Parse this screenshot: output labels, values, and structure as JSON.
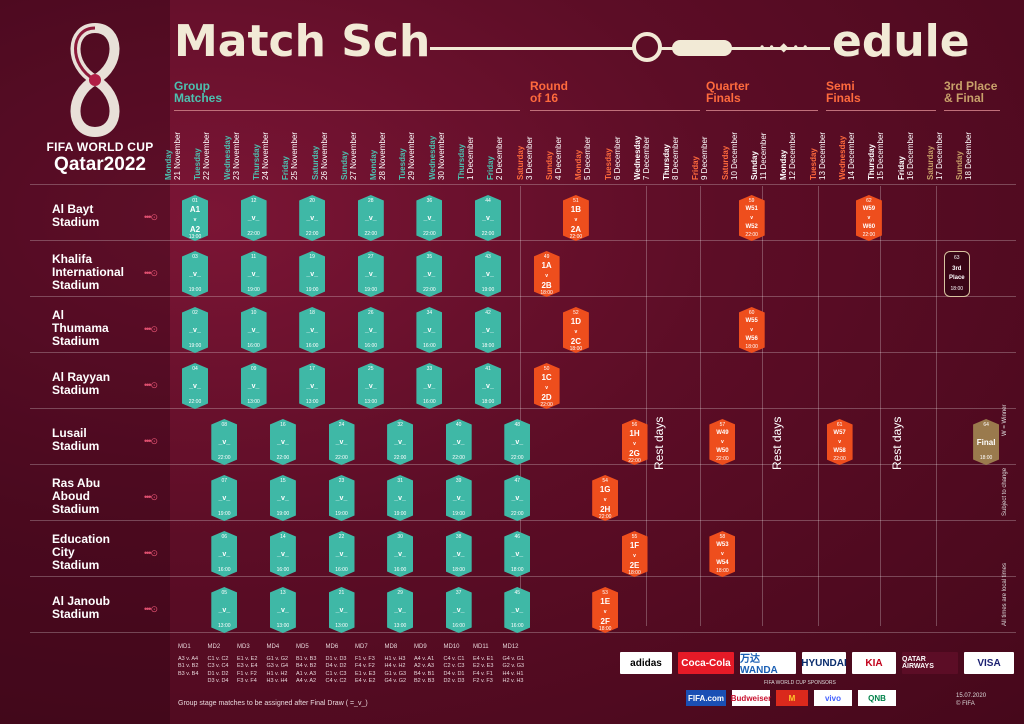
{
  "title": {
    "left": "Match Sch",
    "right": "edule"
  },
  "brand": {
    "line1": "FIFA WORLD CUP",
    "line2": "Qatar2022"
  },
  "phases": [
    {
      "label": "Group\nMatches",
      "color": "teal"
    },
    {
      "label": "Round\nof 16",
      "color": "orange"
    },
    {
      "label": "Quarter\nFinals",
      "color": "orange"
    },
    {
      "label": "Semi\nFinals",
      "color": "orange"
    },
    {
      "label": "3rd Place\n& Final",
      "color": "tan"
    }
  ],
  "dates": [
    {
      "dow": "Monday",
      "date": "21 November",
      "c": "teal"
    },
    {
      "dow": "Tuesday",
      "date": "22 November",
      "c": "teal"
    },
    {
      "dow": "Wednesday",
      "date": "23 November",
      "c": "teal"
    },
    {
      "dow": "Thursday",
      "date": "24 November",
      "c": "teal"
    },
    {
      "dow": "Friday",
      "date": "25 November",
      "c": "teal"
    },
    {
      "dow": "Saturday",
      "date": "26 November",
      "c": "teal"
    },
    {
      "dow": "Sunday",
      "date": "27 November",
      "c": "teal"
    },
    {
      "dow": "Monday",
      "date": "28 November",
      "c": "teal"
    },
    {
      "dow": "Tuesday",
      "date": "29 November",
      "c": "teal"
    },
    {
      "dow": "Wednesday",
      "date": "30 November",
      "c": "teal"
    },
    {
      "dow": "Thursday",
      "date": "1 December",
      "c": "teal"
    },
    {
      "dow": "Friday",
      "date": "2 December",
      "c": "teal"
    },
    {
      "dow": "Saturday",
      "date": "3 December",
      "c": "orange"
    },
    {
      "dow": "Sunday",
      "date": "4 December",
      "c": "orange"
    },
    {
      "dow": "Monday",
      "date": "5 December",
      "c": "orange"
    },
    {
      "dow": "Tuesday",
      "date": "6 December",
      "c": "orange"
    },
    {
      "dow": "Wednesday",
      "date": "7 December",
      "c": "white"
    },
    {
      "dow": "Thursday",
      "date": "8 December",
      "c": "white"
    },
    {
      "dow": "Friday",
      "date": "9 December",
      "c": "orange"
    },
    {
      "dow": "Saturday",
      "date": "10 December",
      "c": "orange"
    },
    {
      "dow": "Sunday",
      "date": "11 December",
      "c": "white"
    },
    {
      "dow": "Monday",
      "date": "12 December",
      "c": "white"
    },
    {
      "dow": "Tuesday",
      "date": "13 December",
      "c": "orange"
    },
    {
      "dow": "Wednesday",
      "date": "14 December",
      "c": "orange"
    },
    {
      "dow": "Thursday",
      "date": "15 December",
      "c": "white"
    },
    {
      "dow": "Friday",
      "date": "16 December",
      "c": "white"
    },
    {
      "dow": "Saturday",
      "date": "17 December",
      "c": "tan"
    },
    {
      "dow": "Sunday",
      "date": "18 December",
      "c": "tan"
    }
  ],
  "stadiums": [
    "Al Bayt\nStadium",
    "Khalifa\nInternational\nStadium",
    "Al\nThumama\nStadium",
    "Al Rayyan\nStadium",
    "Lusail\nStadium",
    "Ras Abu\nAboud\nStadium",
    "Education\nCity\nStadium",
    "Al Janoub\nStadium"
  ],
  "matches": [
    {
      "row": 0,
      "col": 0,
      "num": "01",
      "top": "A1",
      "mid": "v",
      "bot": "A2",
      "time": "13:00",
      "c": "teal"
    },
    {
      "row": 0,
      "col": 1,
      "num": "12",
      "vs": "_v_",
      "time": "22:00",
      "c": "teal"
    },
    {
      "row": 0,
      "col": 2,
      "num": "20",
      "vs": "_v_",
      "time": "22:00",
      "c": "teal"
    },
    {
      "row": 0,
      "col": 3,
      "num": "28",
      "vs": "_v_",
      "time": "22:00",
      "c": "teal"
    },
    {
      "row": 0,
      "col": 4,
      "num": "36",
      "vs": "_v_",
      "time": "22:00",
      "c": "teal"
    },
    {
      "row": 0,
      "col": 5,
      "num": "44",
      "vs": "_v_",
      "time": "22:00",
      "c": "teal"
    },
    {
      "row": 0,
      "col": 6,
      "num": "51",
      "top": "1B",
      "mid": "v",
      "bot": "2A",
      "time": "22:00",
      "c": "orange"
    },
    {
      "row": 0,
      "col": 7,
      "num": "59",
      "top": "W51",
      "mid": "v",
      "bot": "W52",
      "time": "22:00",
      "c": "orange"
    },
    {
      "row": 0,
      "col": 8,
      "num": "62",
      "top": "W59",
      "mid": "v",
      "bot": "W60",
      "time": "22:00",
      "c": "orange"
    },
    {
      "row": 1,
      "col": 0,
      "num": "03",
      "vs": "_v_",
      "time": "19:00",
      "c": "teal"
    },
    {
      "row": 1,
      "col": 1,
      "num": "11",
      "vs": "_v_",
      "time": "19:00",
      "c": "teal"
    },
    {
      "row": 1,
      "col": 2,
      "num": "19",
      "vs": "_v_",
      "time": "19:00",
      "c": "teal"
    },
    {
      "row": 1,
      "col": 3,
      "num": "27",
      "vs": "_v_",
      "time": "19:00",
      "c": "teal"
    },
    {
      "row": 1,
      "col": 4,
      "num": "35",
      "vs": "_v_",
      "time": "22:00",
      "c": "teal"
    },
    {
      "row": 1,
      "col": 5,
      "num": "43",
      "vs": "_v_",
      "time": "19:00",
      "c": "teal"
    },
    {
      "row": 1,
      "col": 6,
      "num": "49",
      "top": "1A",
      "mid": "v",
      "bot": "2B",
      "time": "18:00",
      "c": "orange"
    },
    {
      "row": 1,
      "col": 7,
      "num": "63",
      "top": "3rd",
      "mid": "",
      "bot": "Place",
      "time": "18:00",
      "c": "dark"
    },
    {
      "row": 2,
      "col": 0,
      "num": "02",
      "vs": "_v_",
      "time": "19:00",
      "c": "teal"
    },
    {
      "row": 2,
      "col": 1,
      "num": "10",
      "vs": "_v_",
      "time": "16:00",
      "c": "teal"
    },
    {
      "row": 2,
      "col": 2,
      "num": "18",
      "vs": "_v_",
      "time": "16:00",
      "c": "teal"
    },
    {
      "row": 2,
      "col": 3,
      "num": "26",
      "vs": "_v_",
      "time": "16:00",
      "c": "teal"
    },
    {
      "row": 2,
      "col": 4,
      "num": "34",
      "vs": "_v_",
      "time": "16:00",
      "c": "teal"
    },
    {
      "row": 2,
      "col": 5,
      "num": "42",
      "vs": "_v_",
      "time": "18:00",
      "c": "teal"
    },
    {
      "row": 2,
      "col": 6,
      "num": "52",
      "top": "1D",
      "mid": "v",
      "bot": "2C",
      "time": "18:00",
      "c": "orange"
    },
    {
      "row": 2,
      "col": 7,
      "num": "60",
      "top": "W55",
      "mid": "v",
      "bot": "W56",
      "time": "18:00",
      "c": "orange"
    },
    {
      "row": 3,
      "col": 0,
      "num": "04",
      "vs": "_v_",
      "time": "22:00",
      "c": "teal"
    },
    {
      "row": 3,
      "col": 1,
      "num": "09",
      "vs": "_v_",
      "time": "13:00",
      "c": "teal"
    },
    {
      "row": 3,
      "col": 2,
      "num": "17",
      "vs": "_v_",
      "time": "13:00",
      "c": "teal"
    },
    {
      "row": 3,
      "col": 3,
      "num": "25",
      "vs": "_v_",
      "time": "13:00",
      "c": "teal"
    },
    {
      "row": 3,
      "col": 4,
      "num": "33",
      "vs": "_v_",
      "time": "16:00",
      "c": "teal"
    },
    {
      "row": 3,
      "col": 5,
      "num": "41",
      "vs": "_v_",
      "time": "18:00",
      "c": "teal"
    },
    {
      "row": 3,
      "col": 6,
      "num": "50",
      "top": "1C",
      "mid": "v",
      "bot": "2D",
      "time": "22:00",
      "c": "orange"
    },
    {
      "row": 4,
      "col": 0,
      "num": "08",
      "vs": "_v_",
      "time": "22:00",
      "c": "teal"
    },
    {
      "row": 4,
      "col": 1,
      "num": "16",
      "vs": "_v_",
      "time": "22:00",
      "c": "teal"
    },
    {
      "row": 4,
      "col": 2,
      "num": "24",
      "vs": "_v_",
      "time": "22:00",
      "c": "teal"
    },
    {
      "row": 4,
      "col": 3,
      "num": "32",
      "vs": "_v_",
      "time": "22:00",
      "c": "teal"
    },
    {
      "row": 4,
      "col": 4,
      "num": "40",
      "vs": "_v_",
      "time": "22:00",
      "c": "teal"
    },
    {
      "row": 4,
      "col": 5,
      "num": "48",
      "vs": "_v_",
      "time": "22:00",
      "c": "teal"
    },
    {
      "row": 4,
      "col": 6,
      "num": "56",
      "top": "1H",
      "mid": "v",
      "bot": "2G",
      "time": "22:00",
      "c": "orange"
    },
    {
      "row": 4,
      "col": 7,
      "num": "57",
      "top": "W49",
      "mid": "v",
      "bot": "W50",
      "time": "22:00",
      "c": "orange"
    },
    {
      "row": 4,
      "col": 8,
      "num": "61",
      "top": "W57",
      "mid": "v",
      "bot": "W58",
      "time": "22:00",
      "c": "orange"
    },
    {
      "row": 4,
      "col": 9,
      "num": "64",
      "top": "",
      "mid": "Final",
      "bot": "",
      "time": "18:00",
      "c": "tan"
    },
    {
      "row": 5,
      "col": 0,
      "num": "07",
      "vs": "_v_",
      "time": "19:00",
      "c": "teal"
    },
    {
      "row": 5,
      "col": 1,
      "num": "15",
      "vs": "_v_",
      "time": "19:00",
      "c": "teal"
    },
    {
      "row": 5,
      "col": 2,
      "num": "23",
      "vs": "_v_",
      "time": "19:00",
      "c": "teal"
    },
    {
      "row": 5,
      "col": 3,
      "num": "31",
      "vs": "_v_",
      "time": "19:00",
      "c": "teal"
    },
    {
      "row": 5,
      "col": 4,
      "num": "39",
      "vs": "_v_",
      "time": "19:00",
      "c": "teal"
    },
    {
      "row": 5,
      "col": 5,
      "num": "47",
      "vs": "_v_",
      "time": "22:00",
      "c": "teal"
    },
    {
      "row": 5,
      "col": 6,
      "num": "54",
      "top": "1G",
      "mid": "v",
      "bot": "2H",
      "time": "22:00",
      "c": "orange"
    },
    {
      "row": 6,
      "col": 0,
      "num": "06",
      "vs": "_v_",
      "time": "16:00",
      "c": "teal"
    },
    {
      "row": 6,
      "col": 1,
      "num": "14",
      "vs": "_v_",
      "time": "16:00",
      "c": "teal"
    },
    {
      "row": 6,
      "col": 2,
      "num": "22",
      "vs": "_v_",
      "time": "16:00",
      "c": "teal"
    },
    {
      "row": 6,
      "col": 3,
      "num": "30",
      "vs": "_v_",
      "time": "16:00",
      "c": "teal"
    },
    {
      "row": 6,
      "col": 4,
      "num": "38",
      "vs": "_v_",
      "time": "18:00",
      "c": "teal"
    },
    {
      "row": 6,
      "col": 5,
      "num": "46",
      "vs": "_v_",
      "time": "18:00",
      "c": "teal"
    },
    {
      "row": 6,
      "col": 6,
      "num": "55",
      "top": "1F",
      "mid": "v",
      "bot": "2E",
      "time": "18:00",
      "c": "orange"
    },
    {
      "row": 6,
      "col": 7,
      "num": "58",
      "top": "W53",
      "mid": "v",
      "bot": "W54",
      "time": "18:00",
      "c": "orange"
    },
    {
      "row": 7,
      "col": 0,
      "num": "05",
      "vs": "_v_",
      "time": "13:00",
      "c": "teal"
    },
    {
      "row": 7,
      "col": 1,
      "num": "13",
      "vs": "_v_",
      "time": "13:00",
      "c": "teal"
    },
    {
      "row": 7,
      "col": 2,
      "num": "21",
      "vs": "_v_",
      "time": "13:00",
      "c": "teal"
    },
    {
      "row": 7,
      "col": 3,
      "num": "29",
      "vs": "_v_",
      "time": "13:00",
      "c": "teal"
    },
    {
      "row": 7,
      "col": 4,
      "num": "37",
      "vs": "_v_",
      "time": "16:00",
      "c": "teal"
    },
    {
      "row": 7,
      "col": 5,
      "num": "45",
      "vs": "_v_",
      "time": "16:00",
      "c": "teal"
    },
    {
      "row": 7,
      "col": 6,
      "num": "53",
      "top": "1E",
      "mid": "v",
      "bot": "2F",
      "time": "18:00",
      "c": "orange"
    }
  ],
  "rest_days": "Rest days",
  "side_notes": [
    "W = Winner",
    "Subject to change",
    "All times are local times"
  ],
  "matchdays": [
    {
      "h": "MD1",
      "l": [
        "A3 v. A4",
        "B1 v. B2",
        "B3 v. B4"
      ]
    },
    {
      "h": "MD2",
      "l": [
        "C1 v. C2",
        "C3 v. C4",
        "D1 v. D2",
        "D3 v. D4"
      ]
    },
    {
      "h": "MD3",
      "l": [
        "E1 v. E2",
        "E3 v. E4",
        "F1 v. F2",
        "F3 v. F4"
      ]
    },
    {
      "h": "MD4",
      "l": [
        "G1 v. G2",
        "G3 v. G4",
        "H1 v. H2",
        "H3 v. H4"
      ]
    },
    {
      "h": "MD5",
      "l": [
        "B1 v. B3",
        "B4 v. B2",
        "A1 v. A3",
        "A4 v. A2"
      ]
    },
    {
      "h": "MD6",
      "l": [
        "D1 v. D3",
        "D4 v. D2",
        "C1 v. C3",
        "C4 v. C2"
      ]
    },
    {
      "h": "MD7",
      "l": [
        "F1 v. F3",
        "F4 v. F2",
        "E1 v. E3",
        "E4 v. E2"
      ]
    },
    {
      "h": "MD8",
      "l": [
        "H1 v. H3",
        "H4 v. H2",
        "G1 v. G3",
        "G4 v. G2"
      ]
    },
    {
      "h": "MD9",
      "l": [
        "A4 v. A1",
        "A2 v. A3",
        "B4 v. B1",
        "B2 v. B3"
      ]
    },
    {
      "h": "MD10",
      "l": [
        "C4 v. C1",
        "C2 v. C3",
        "D4 v. D1",
        "D2 v. D3"
      ]
    },
    {
      "h": "MD11",
      "l": [
        "E4 v. E1",
        "E2 v. E3",
        "F4 v. F1",
        "F2 v. F3"
      ]
    },
    {
      "h": "MD12",
      "l": [
        "G4 v. G1",
        "G2 v. G3",
        "H4 v. H1",
        "H2 v. H3"
      ]
    }
  ],
  "footnote": "Group stage matches to be assigned after Final Draw ( =_v_)",
  "sponsors_row1": [
    {
      "name": "adidas",
      "bg": "#ffffff",
      "fg": "#000000"
    },
    {
      "name": "Coca-Cola",
      "bg": "#e61a27",
      "fg": "#ffffff"
    },
    {
      "name": "万达 WANDA",
      "bg": "#ffffff",
      "fg": "#1a5fb4"
    },
    {
      "name": "HYUNDAI",
      "bg": "#ffffff",
      "fg": "#0a2d6e"
    },
    {
      "name": "KIA",
      "bg": "#ffffff",
      "fg": "#c2001b"
    },
    {
      "name": "QATAR AIRWAYS",
      "bg": "#5c0d26",
      "fg": "#ffffff"
    },
    {
      "name": "VISA",
      "bg": "#ffffff",
      "fg": "#1a1f71"
    }
  ],
  "sponsor_label": "FIFA WORLD CUP SPONSORS",
  "sponsors_row2": [
    {
      "name": "FIFA.com",
      "bg": "#1a4fb4",
      "fg": "#ffffff"
    },
    {
      "name": "Budweiser",
      "bg": "#ffffff",
      "fg": "#c8102e"
    },
    {
      "name": "M",
      "bg": "#da291c",
      "fg": "#ffc72c"
    },
    {
      "name": "vivo",
      "bg": "#ffffff",
      "fg": "#415fff"
    },
    {
      "name": "QNB",
      "bg": "#ffffff",
      "fg": "#00824a"
    }
  ],
  "issue_date": "15.07.2020",
  "copyright": "© FIFA"
}
